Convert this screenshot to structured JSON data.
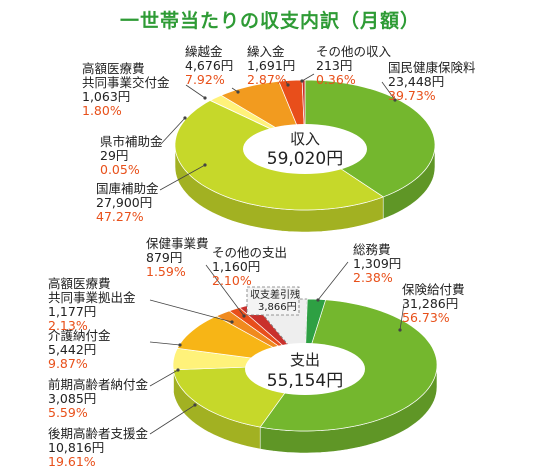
{
  "title": "一世帯当たりの収支内訳（月額）",
  "colors": {
    "title": "#2e9b35",
    "percent": "#e8501a",
    "label": "#222222",
    "leader": "#444444"
  },
  "chart_data": [
    {
      "type": "pie",
      "name": "income",
      "center_label": "収入",
      "total": "59,020円",
      "slices": [
        {
          "label": "国民健康保険料",
          "amount": "23,448円",
          "value": 23448,
          "percent": "39.73%",
          "color": "#74b72e"
        },
        {
          "label": "国庫補助金",
          "amount": "27,900円",
          "value": 27900,
          "percent": "47.27%",
          "color": "#c6d82a"
        },
        {
          "label": "県市補助金",
          "amount": "29円",
          "value": 29,
          "percent": "0.05%",
          "color": "#fde98a"
        },
        {
          "label": "高額医療費\n共同事業交付金",
          "amount": "1,063円",
          "value": 1063,
          "percent": "1.80%",
          "color": "#fff27a"
        },
        {
          "label": "繰越金",
          "amount": "4,676円",
          "value": 4676,
          "percent": "7.92%",
          "color": "#f29b1f"
        },
        {
          "label": "繰入金",
          "amount": "1,691円",
          "value": 1691,
          "percent": "2.87%",
          "color": "#e84e1b"
        },
        {
          "label": "その他の収入",
          "amount": "213円",
          "value": 213,
          "percent": "0.36%",
          "color": "#c9302c"
        }
      ]
    },
    {
      "type": "pie",
      "name": "expenditure",
      "center_label": "支出",
      "total": "55,154円",
      "slices": [
        {
          "label": "保険給付費",
          "amount": "31,286円",
          "value": 31286,
          "percent": "56.73%",
          "color": "#74b72e"
        },
        {
          "label": "後期高齢者支援金",
          "amount": "10,816円",
          "value": 10816,
          "percent": "19.61%",
          "color": "#c6d82a"
        },
        {
          "label": "前期高齢者納付金",
          "amount": "3,085円",
          "value": 3085,
          "percent": "5.59%",
          "color": "#fff27a"
        },
        {
          "label": "介護納付金",
          "amount": "5,442円",
          "value": 5442,
          "percent": "9.87%",
          "color": "#f7b516"
        },
        {
          "label": "高額医療費\n共同事業拠出金",
          "amount": "1,177円",
          "value": 1177,
          "percent": "2.13%",
          "color": "#f08a1e"
        },
        {
          "label": "保健事業費",
          "amount": "879円",
          "value": 879,
          "percent": "1.59%",
          "color": "#e84e1b"
        },
        {
          "label": "その他の支出",
          "amount": "1,160円",
          "value": 1160,
          "percent": "2.10%",
          "color": "#c9302c"
        },
        {
          "label": "収支差引残",
          "amount": "3,866円",
          "value": 3866,
          "percent": "",
          "color": "#eeeeee",
          "dashed": true
        },
        {
          "label": "総務費",
          "amount": "1,309円",
          "value": 1309,
          "percent": "2.38%",
          "color": "#2ea043"
        }
      ]
    }
  ]
}
